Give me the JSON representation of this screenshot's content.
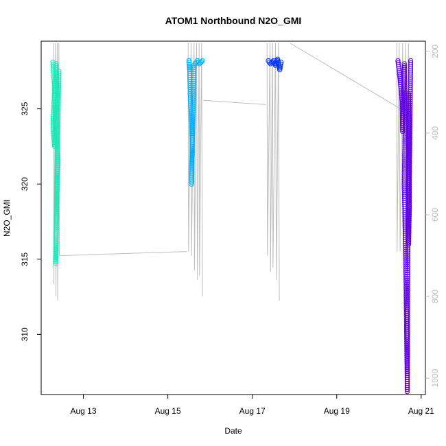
{
  "chart_data": {
    "type": "scatter",
    "title": "ATOM1 Northbound N2O_GMI",
    "xlabel": "Date",
    "ylabel": "N2O_GMI",
    "x_ticks": [
      "Aug 13",
      "Aug 15",
      "Aug 17",
      "Aug 19",
      "Aug 21"
    ],
    "x_tick_days": [
      13,
      15,
      17,
      19,
      21
    ],
    "xlim_days": [
      12.0,
      21.1
    ],
    "y_ticks": [
      310,
      315,
      320,
      325
    ],
    "ylim": [
      306.0,
      329.5
    ],
    "right_axis": {
      "label": "",
      "ticks": [
        200,
        400,
        600,
        800,
        1000
      ],
      "lim": [
        1040,
        175
      ],
      "color": "#bdbdbd"
    },
    "marker": "open-circle",
    "grid": false,
    "legend": "none",
    "series": [
      {
        "color": "#1de9b6",
        "day_range": [
          12.25,
          12.42
        ],
        "points": [
          [
            12.28,
            328.1
          ],
          [
            12.3,
            327.2
          ],
          [
            12.32,
            326.4
          ],
          [
            12.3,
            325.1
          ],
          [
            12.28,
            324.0
          ],
          [
            12.3,
            323.1
          ],
          [
            12.32,
            322.5
          ],
          [
            12.35,
            328.0
          ],
          [
            12.38,
            326.0
          ],
          [
            12.36,
            323.8
          ],
          [
            12.4,
            321.6
          ],
          [
            12.38,
            320.2
          ],
          [
            12.37,
            318.7
          ],
          [
            12.36,
            317.0
          ],
          [
            12.35,
            315.3
          ],
          [
            12.34,
            314.7
          ],
          [
            12.4,
            324.6
          ],
          [
            12.42,
            327.5
          ]
        ]
      },
      {
        "color": "#00b0ff",
        "day_range": [
          15.45,
          15.85
        ],
        "points": [
          [
            15.5,
            328.2
          ],
          [
            15.52,
            327.5
          ],
          [
            15.53,
            326.0
          ],
          [
            15.55,
            324.8
          ],
          [
            15.57,
            323.5
          ],
          [
            15.58,
            322.1
          ],
          [
            15.56,
            320.8
          ],
          [
            15.56,
            320.0
          ],
          [
            15.62,
            327.9
          ],
          [
            15.7,
            328.2
          ],
          [
            15.75,
            328.0
          ],
          [
            15.82,
            328.2
          ]
        ]
      },
      {
        "color": "#0033ff",
        "day_range": [
          17.35,
          17.7
        ],
        "points": [
          [
            17.38,
            328.2
          ],
          [
            17.43,
            328.0
          ],
          [
            17.5,
            328.2
          ],
          [
            17.55,
            327.9
          ],
          [
            17.6,
            328.3
          ],
          [
            17.65,
            327.6
          ],
          [
            17.68,
            328.1
          ]
        ]
      },
      {
        "color": "#6200ea",
        "day_range": [
          20.4,
          20.75
        ],
        "points": [
          [
            20.45,
            328.2
          ],
          [
            20.5,
            327.0
          ],
          [
            20.55,
            325.5
          ],
          [
            20.56,
            323.5
          ],
          [
            20.6,
            328.0
          ],
          [
            20.62,
            324.0
          ],
          [
            20.6,
            320.0
          ],
          [
            20.62,
            317.0
          ],
          [
            20.64,
            314.0
          ],
          [
            20.65,
            311.5
          ],
          [
            20.66,
            309.0
          ],
          [
            20.67,
            307.0
          ],
          [
            20.67,
            306.2
          ],
          [
            20.7,
            326.0
          ],
          [
            20.72,
            322.0
          ],
          [
            20.72,
            318.5
          ],
          [
            20.7,
            316.0
          ],
          [
            20.75,
            328.2
          ]
        ]
      }
    ],
    "altitude_trace": {
      "color": "#bdbdbd",
      "segments": [
        [
          [
            12.3,
            180
          ],
          [
            12.3,
            770
          ],
          [
            12.34,
            180
          ],
          [
            12.35,
            800
          ],
          [
            12.38,
            180
          ],
          [
            12.39,
            810
          ],
          [
            12.42,
            180
          ],
          [
            12.43,
            700
          ]
        ],
        [
          [
            12.43,
            700
          ],
          [
            15.45,
            690
          ]
        ],
        [
          [
            15.48,
            180
          ],
          [
            15.49,
            690
          ],
          [
            15.55,
            180
          ],
          [
            15.56,
            700
          ],
          [
            15.62,
            180
          ],
          [
            15.63,
            735
          ],
          [
            15.68,
            180
          ],
          [
            15.7,
            760
          ],
          [
            15.74,
            180
          ],
          [
            15.75,
            750
          ],
          [
            15.8,
            180
          ],
          [
            15.82,
            800
          ]
        ],
        [
          [
            15.85,
            320
          ],
          [
            17.32,
            330
          ]
        ],
        [
          [
            17.35,
            180
          ],
          [
            17.36,
            700
          ],
          [
            17.42,
            180
          ],
          [
            17.43,
            740
          ],
          [
            17.48,
            180
          ],
          [
            17.49,
            730
          ],
          [
            17.55,
            180
          ],
          [
            17.57,
            760
          ],
          [
            17.62,
            180
          ],
          [
            17.64,
            810
          ]
        ],
        [
          [
            17.9,
            180
          ],
          [
            20.5,
            340
          ]
        ],
        [
          [
            20.42,
            180
          ],
          [
            20.43,
            690
          ],
          [
            20.48,
            180
          ],
          [
            20.5,
            690
          ],
          [
            20.56,
            180
          ],
          [
            20.58,
            700
          ],
          [
            20.63,
            180
          ],
          [
            20.65,
            690
          ],
          [
            20.7,
            180
          ],
          [
            20.72,
            640
          ]
        ]
      ]
    }
  }
}
